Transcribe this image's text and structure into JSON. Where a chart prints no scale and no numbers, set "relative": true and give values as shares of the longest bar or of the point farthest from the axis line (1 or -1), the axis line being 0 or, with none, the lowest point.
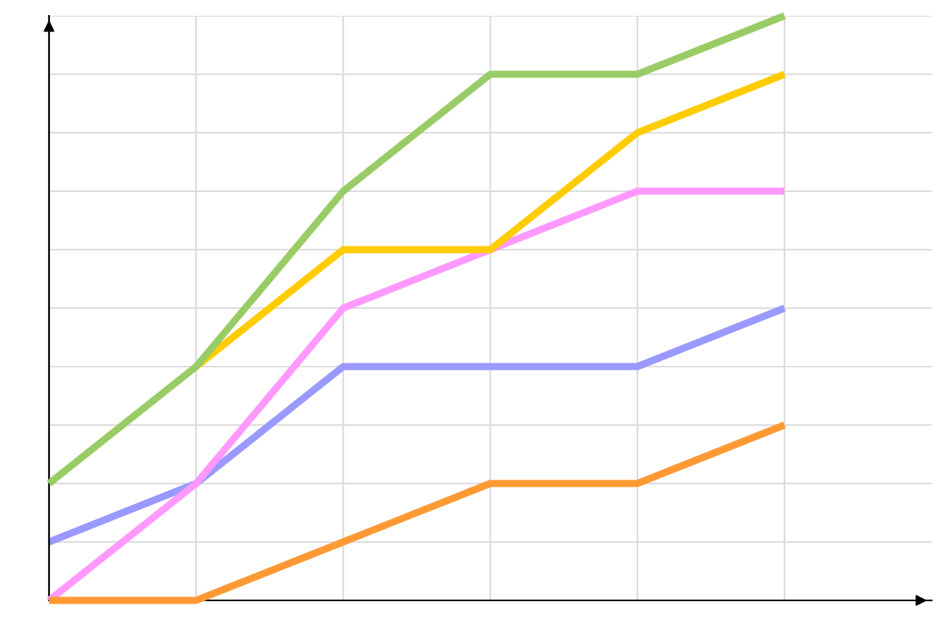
{
  "chart_data": {
    "type": "line",
    "relative": true,
    "grid": true,
    "legend": false,
    "categories": [
      null,
      null,
      null,
      null,
      null,
      null
    ],
    "series": [
      {
        "color": "#9999ff",
        "values": [
          0.1,
          0.2,
          0.4,
          0.4,
          0.4,
          0.5
        ]
      },
      {
        "color": "#ff99ff",
        "values": [
          0.0,
          0.2,
          0.5,
          0.6,
          0.7,
          0.7
        ]
      },
      {
        "color": "#ffcc00",
        "values": [
          null,
          0.4,
          0.6,
          0.6,
          0.8,
          0.9
        ]
      },
      {
        "color": "#99cc66",
        "values": [
          0.2,
          0.4,
          0.7,
          0.9,
          0.9,
          1.0
        ]
      },
      {
        "color": "#ff9933",
        "values": [
          0.0,
          0.0,
          0.1,
          0.2,
          0.2,
          0.3
        ]
      }
    ]
  }
}
